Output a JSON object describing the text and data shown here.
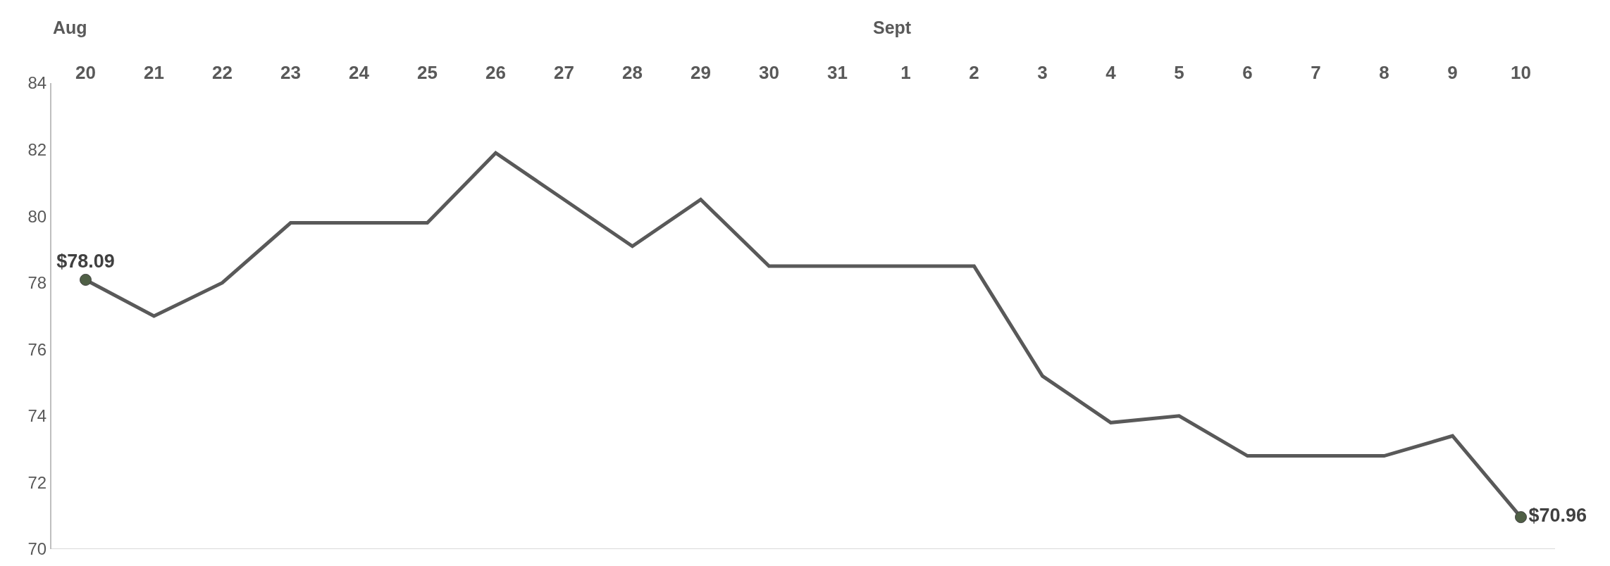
{
  "chart_data": {
    "type": "line",
    "categories": [
      "20",
      "21",
      "22",
      "23",
      "24",
      "25",
      "26",
      "27",
      "28",
      "29",
      "30",
      "31",
      "1",
      "2",
      "3",
      "4",
      "5",
      "6",
      "7",
      "8",
      "9",
      "10"
    ],
    "series": [
      {
        "color": "#595959",
        "values": [
          78.09,
          77.0,
          78.0,
          79.8,
          79.8,
          79.8,
          81.9,
          80.5,
          79.1,
          80.5,
          78.5,
          78.5,
          78.5,
          78.5,
          75.2,
          73.8,
          74.0,
          72.8,
          72.8,
          72.8,
          73.4,
          70.96
        ],
        "value_labels": [
          "$78.09",
          null,
          null,
          null,
          null,
          null,
          null,
          null,
          null,
          null,
          null,
          null,
          null,
          null,
          null,
          null,
          null,
          null,
          null,
          null,
          null,
          "$70.96"
        ]
      }
    ],
    "annotations": [
      "Aug",
      "Sept"
    ],
    "ylim": [
      70,
      84
    ],
    "yticks": [
      70,
      72,
      74,
      76,
      78,
      80,
      82,
      84
    ],
    "legend": false
  }
}
